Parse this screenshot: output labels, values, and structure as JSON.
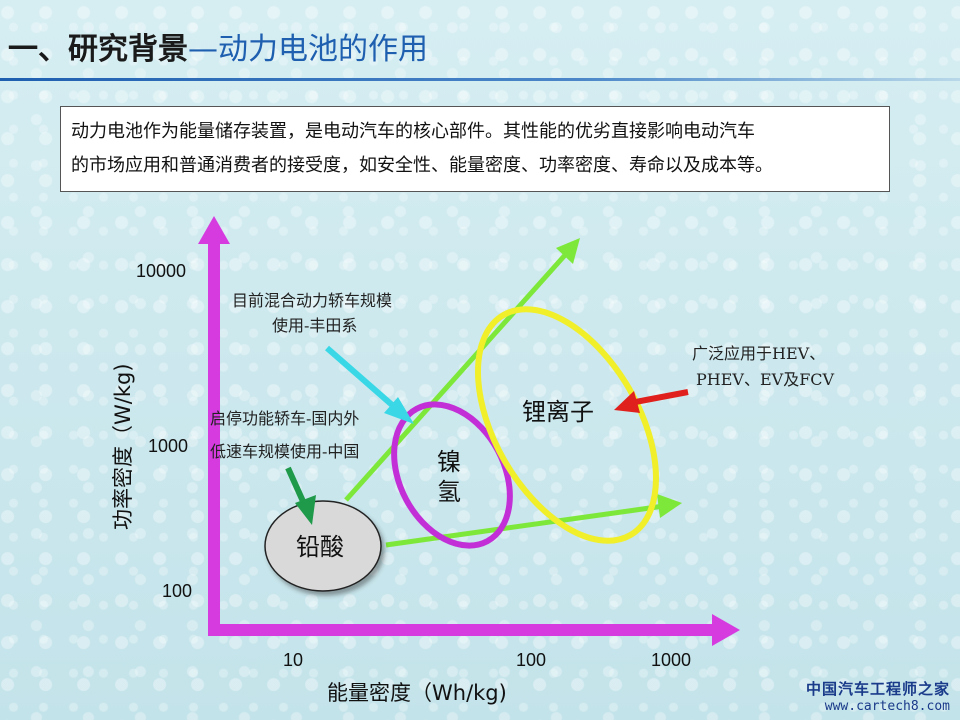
{
  "header": {
    "title_main": "一、研究背景",
    "title_sub": "—动力电池的作用"
  },
  "description": {
    "line1": "动力电池作为能量储存装置，是电动汽车的核心部件。其性能的优劣直接影响电动汽车",
    "line2": "的市场应用和普通消费者的接受度，如安全性、能量密度、功率密度、寿命以及成本等。"
  },
  "chart": {
    "axis_x_label": "能量密度（Wh/kg)",
    "axis_y_label": "功率密度（W/kg)",
    "x_ticks": [
      "10",
      "100",
      "1000"
    ],
    "y_ticks": [
      "10000",
      "1000",
      "100"
    ],
    "regions": {
      "lead_acid": "铅酸",
      "nimh_line1": "镍",
      "nimh_line2": "氢",
      "li_ion": "锂离子"
    },
    "annotations": {
      "hybrid_line1": "目前混合动力轿车规模",
      "hybrid_line2": "使用-丰田系",
      "startstop_line1": "启停功能轿车-国内外",
      "startstop_line2": "低速车规模使用-中国",
      "liion_line1": "广泛应用于HEV、",
      "liion_line2": "PHEV、EV及FCV"
    },
    "colors": {
      "axis": "#d63be0",
      "trend": "#7ee83a",
      "lead_acid_fill": "#d9d9d9",
      "nimh": "#c32fd6",
      "li_ion": "#f0ef2a",
      "arrow_hybrid": "#3ad8e6",
      "arrow_startstop": "#1f9a4a",
      "arrow_liion": "#e0201c"
    }
  },
  "watermark": {
    "name": "中国汽车工程师之家",
    "url": "www.cartech8.com"
  }
}
